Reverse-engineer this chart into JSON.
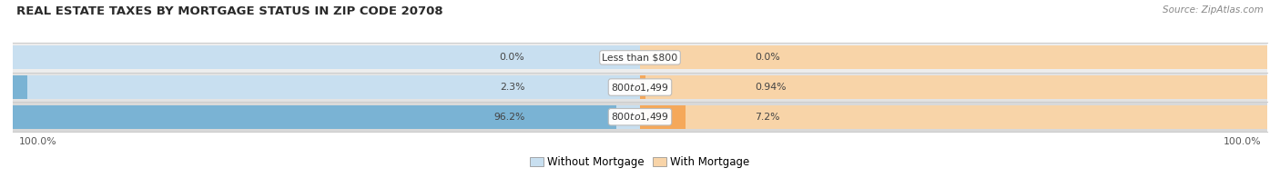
{
  "title": "REAL ESTATE TAXES BY MORTGAGE STATUS IN ZIP CODE 20708",
  "source": "Source: ZipAtlas.com",
  "rows": [
    {
      "label": "Less than $800",
      "without_mortgage": 0.0,
      "with_mortgage": 0.0,
      "left_label": "0.0%",
      "right_label": "0.0%"
    },
    {
      "label": "$800 to $1,499",
      "without_mortgage": 2.3,
      "with_mortgage": 0.94,
      "left_label": "2.3%",
      "right_label": "0.94%"
    },
    {
      "label": "$800 to $1,499",
      "without_mortgage": 96.2,
      "with_mortgage": 7.2,
      "left_label": "96.2%",
      "right_label": "7.2%"
    }
  ],
  "bottom_left_label": "100.0%",
  "bottom_right_label": "100.0%",
  "color_without": "#7ab3d4",
  "color_with": "#f5a85a",
  "color_without_light": "#c8dff0",
  "color_with_light": "#f8d4a8",
  "row_bg_colors": [
    "#ebebeb",
    "#e0e0e0",
    "#d8d8d8"
  ],
  "title_fontsize": 9.5,
  "source_fontsize": 7.5,
  "label_fontsize": 7.8,
  "legend_fontsize": 8.5,
  "bar_total_pct": 100
}
